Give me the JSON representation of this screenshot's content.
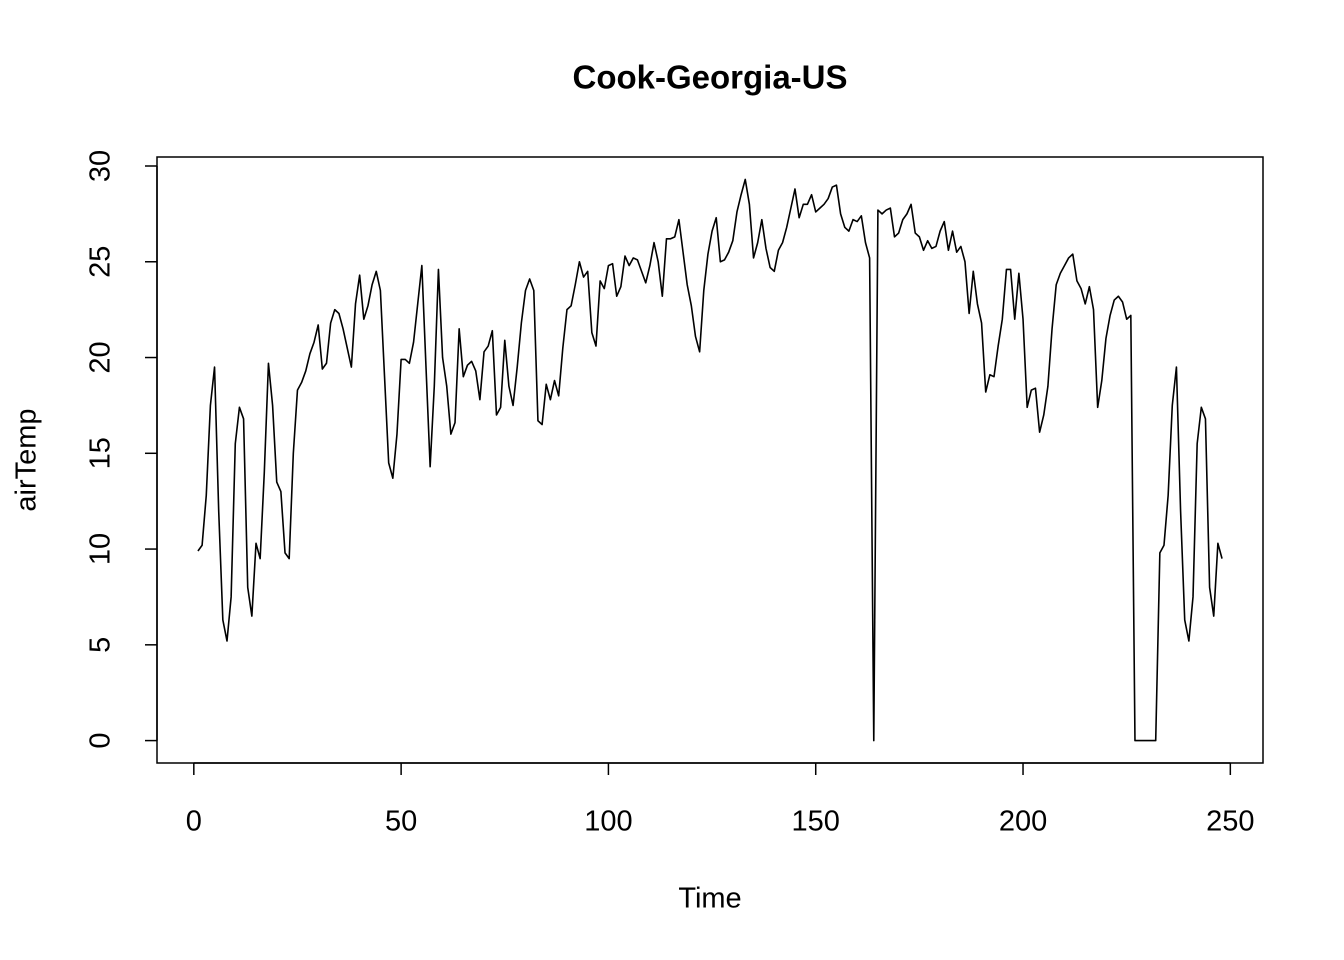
{
  "chart_data": {
    "type": "line",
    "title": "Cook-Georgia-US",
    "x_label": "Time",
    "y_label": "airTemp",
    "color": "#000000",
    "x": [
      1,
      2,
      3,
      4,
      5,
      6,
      7,
      8,
      9,
      10,
      11,
      12,
      13,
      14,
      15,
      16,
      17,
      18,
      19,
      20,
      21,
      22,
      23,
      24,
      25,
      26,
      27,
      28,
      29,
      30,
      31,
      32,
      33,
      34,
      35,
      36,
      37,
      38,
      39,
      40,
      41,
      42,
      43,
      44,
      45,
      46,
      47,
      48,
      49,
      50,
      51,
      52,
      53,
      54,
      55,
      56,
      57,
      58,
      59,
      60,
      61,
      62,
      63,
      64,
      65,
      66,
      67,
      68,
      69,
      70,
      71,
      72,
      73,
      74,
      75,
      76,
      77,
      78,
      79,
      80,
      81,
      82,
      83,
      84,
      85,
      86,
      87,
      88,
      89,
      90,
      91,
      92,
      93,
      94,
      95,
      96,
      97,
      98,
      99,
      100,
      101,
      102,
      103,
      104,
      105,
      106,
      107,
      108,
      109,
      110,
      111,
      112,
      113,
      114,
      115,
      116,
      117,
      118,
      119,
      120,
      121,
      122,
      123,
      124,
      125,
      126,
      127,
      128,
      129,
      130,
      131,
      132,
      133,
      134,
      135,
      136,
      137,
      138,
      139,
      140,
      141,
      142,
      143,
      144,
      145,
      146,
      147,
      148,
      149,
      150,
      151,
      152,
      153,
      154,
      155,
      156,
      157,
      158,
      159,
      160,
      161,
      162,
      163,
      164,
      165,
      166,
      167,
      168,
      169,
      170,
      171,
      172,
      173,
      174,
      175,
      176,
      177,
      178,
      179,
      180,
      181,
      182,
      183,
      184,
      185,
      186,
      187,
      188,
      189,
      190,
      191,
      192,
      193,
      194,
      195,
      196,
      197,
      198,
      199,
      200,
      201,
      202,
      203,
      204,
      205,
      206,
      207,
      208,
      209,
      210,
      211,
      212,
      213,
      214,
      215,
      216,
      217,
      218,
      219,
      220,
      221,
      222,
      223,
      224,
      225,
      226,
      227,
      228,
      229,
      230,
      231,
      232,
      233,
      234,
      235,
      236,
      237,
      238,
      239,
      240,
      241,
      242,
      243,
      244,
      245,
      246,
      247,
      248
    ],
    "values": [
      9.9,
      10.2,
      12.8,
      17.5,
      19.5,
      12,
      6.3,
      5.2,
      7.5,
      15.5,
      17.4,
      16.8,
      8,
      6.5,
      10.3,
      9.5,
      14,
      19.7,
      17.5,
      13.5,
      13,
      9.8,
      9.5,
      15,
      18.3,
      18.7,
      19.3,
      20.2,
      20.8,
      21.7,
      19.4,
      19.7,
      21.8,
      22.5,
      22.3,
      21.5,
      20.5,
      19.5,
      22.8,
      24.3,
      22,
      22.7,
      23.8,
      24.5,
      23.5,
      19,
      14.5,
      13.7,
      16,
      19.9,
      19.9,
      19.7,
      20.8,
      22.8,
      24.8,
      19.5,
      14.3,
      18.5,
      24.6,
      20,
      18.5,
      16,
      16.6,
      21.5,
      19,
      19.6,
      19.8,
      19.3,
      17.8,
      20.3,
      20.6,
      21.4,
      17,
      17.4,
      20.9,
      18.5,
      17.5,
      19.5,
      21.8,
      23.5,
      24.1,
      23.5,
      16.7,
      16.5,
      18.6,
      17.8,
      18.8,
      18,
      20.5,
      22.5,
      22.7,
      23.8,
      25,
      24.2,
      24.5,
      21.3,
      20.6,
      24,
      23.6,
      24.8,
      24.9,
      23.2,
      23.7,
      25.3,
      24.8,
      25.2,
      25.1,
      24.5,
      23.9,
      24.8,
      26,
      25,
      23.2,
      26.2,
      26.2,
      26.3,
      27.2,
      25.5,
      23.8,
      22.7,
      21.1,
      20.3,
      23.5,
      25.4,
      26.6,
      27.3,
      25,
      25.1,
      25.5,
      26.1,
      27.6,
      28.5,
      29.3,
      28,
      25.2,
      26,
      27.2,
      25.7,
      24.7,
      24.5,
      25.6,
      26,
      26.8,
      27.8,
      28.8,
      27.3,
      28,
      28,
      28.5,
      27.6,
      27.8,
      28,
      28.3,
      28.9,
      29,
      27.5,
      26.8,
      26.6,
      27.2,
      27.1,
      27.4,
      26,
      25.2,
      0,
      27.7,
      27.5,
      27.7,
      27.8,
      26.3,
      26.5,
      27.2,
      27.5,
      28,
      26.5,
      26.3,
      25.6,
      26.1,
      25.7,
      25.8,
      26.6,
      27.1,
      25.6,
      26.6,
      25.5,
      25.8,
      25,
      22.3,
      24.5,
      22.8,
      21.8,
      18.2,
      19.1,
      19,
      20.6,
      22,
      24.6,
      24.6,
      22,
      24.4,
      22,
      17.4,
      18.3,
      18.4,
      16.1,
      17,
      18.5,
      21.5,
      23.8,
      24.4,
      24.8,
      25.2,
      25.4,
      24,
      23.6,
      22.8,
      23.7,
      22.5,
      17.4,
      18.8,
      21,
      22.2,
      23,
      23.2,
      22.9,
      22,
      22.2,
      0,
      0,
      0,
      0,
      0,
      0,
      9.8,
      10.2,
      12.8,
      17.5,
      19.5,
      12,
      6.3,
      5.2,
      7.5,
      15.5,
      17.4,
      16.8,
      8,
      6.5,
      10.3,
      9.5
    ],
    "xlim": [
      -8.88,
      257.88
    ],
    "ylim": [
      -1.17,
      30.47
    ],
    "xticks": [
      0,
      50,
      100,
      150,
      200,
      250
    ],
    "yticks": [
      0,
      5,
      10,
      15,
      20,
      25,
      30
    ]
  }
}
